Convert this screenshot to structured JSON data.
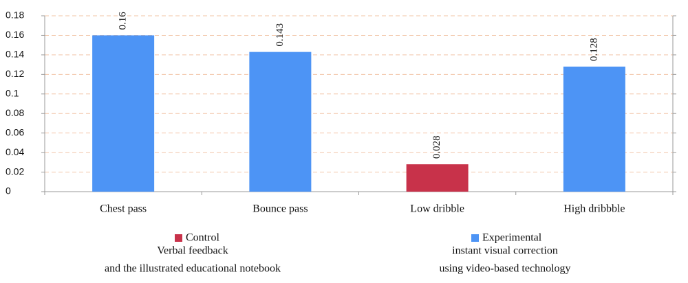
{
  "chart_data": {
    "type": "bar",
    "categories": [
      "Chest pass",
      "Bounce pass",
      "Low dribble",
      "High dribbble"
    ],
    "series": [
      {
        "name": "Control",
        "color": "#c8324a",
        "description": [
          "Verbal feedback",
          "and the illustrated educational notebook"
        ],
        "values": [
          null,
          null,
          0.028,
          null
        ]
      },
      {
        "name": "Experimental",
        "color": "#4d94f5",
        "description": [
          "instant visual correction",
          "using video-based technology"
        ],
        "values": [
          0.16,
          0.143,
          null,
          0.128
        ]
      }
    ],
    "ylim": [
      0,
      0.18
    ],
    "yticks": [
      0,
      0.02,
      0.04,
      0.06,
      0.08,
      0.1,
      0.12,
      0.14,
      0.16,
      0.18
    ],
    "grid": true
  }
}
